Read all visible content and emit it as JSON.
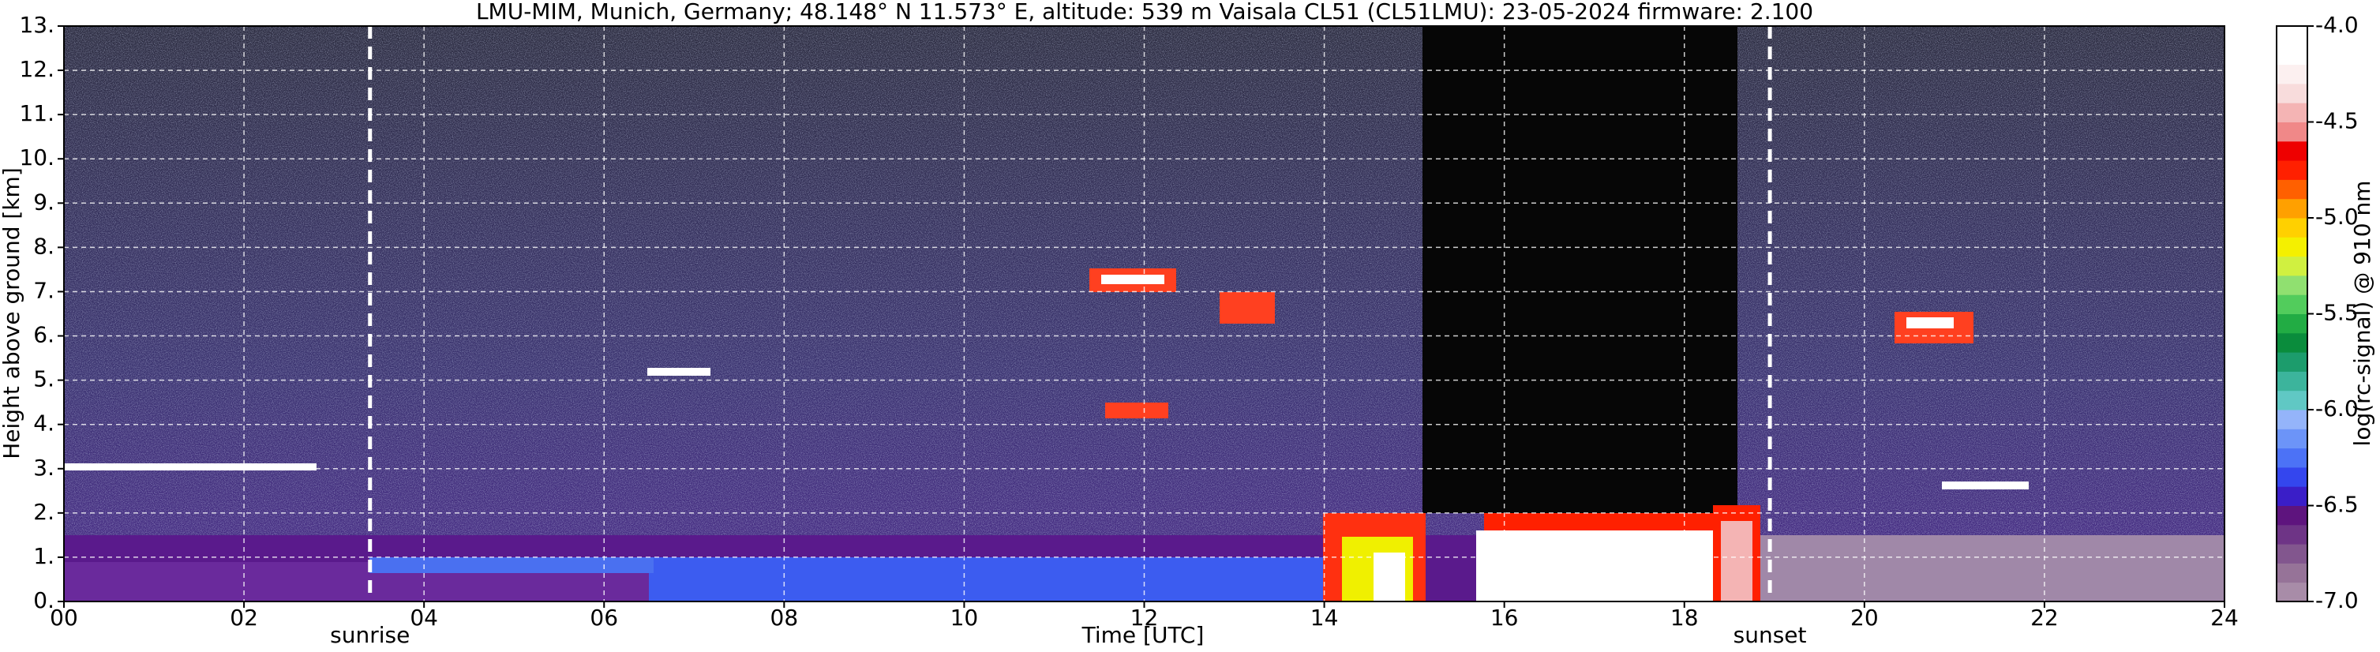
{
  "chart_data": {
    "type": "ceilometer",
    "title": "LMU-MIM, Munich, Germany; 48.148° N 11.573° E, altitude: 539 m    Vaisala CL51 (CL51LMU): 23-05-2024    firmware: 2.100",
    "x_label": "Time [UTC]",
    "y_label": "Height above ground [km]",
    "colorbar_label": "log(rc-signal) @ 910 nm",
    "xlim": [
      0,
      24
    ],
    "xticks": [
      {
        "value": 0,
        "label": "00"
      },
      {
        "value": 2,
        "label": "02"
      },
      {
        "value": 4,
        "label": "04"
      },
      {
        "value": 6,
        "label": "06"
      },
      {
        "value": 8,
        "label": "08"
      },
      {
        "value": 10,
        "label": "10"
      },
      {
        "value": 12,
        "label": "12"
      },
      {
        "value": 14,
        "label": "14"
      },
      {
        "value": 16,
        "label": "16"
      },
      {
        "value": 18,
        "label": "18"
      },
      {
        "value": 20,
        "label": "20"
      },
      {
        "value": 22,
        "label": "22"
      },
      {
        "value": 24,
        "label": "24"
      }
    ],
    "ylim": [
      0,
      13
    ],
    "yticks": [
      {
        "value": 0,
        "label": "0."
      },
      {
        "value": 1,
        "label": "1."
      },
      {
        "value": 2,
        "label": "2."
      },
      {
        "value": 3,
        "label": "3."
      },
      {
        "value": 4,
        "label": "4."
      },
      {
        "value": 5,
        "label": "5."
      },
      {
        "value": 6,
        "label": "6."
      },
      {
        "value": 7,
        "label": "7."
      },
      {
        "value": 8,
        "label": "8."
      },
      {
        "value": 9,
        "label": "9."
      },
      {
        "value": 10,
        "label": "10."
      },
      {
        "value": 11,
        "label": "11."
      },
      {
        "value": 12,
        "label": "12."
      },
      {
        "value": 13,
        "label": "13."
      }
    ],
    "grid": true,
    "annotations": [
      {
        "label": "sunrise",
        "x": 3.4
      },
      {
        "label": "sunset",
        "x": 18.95
      }
    ],
    "clim": [
      -7,
      -4
    ],
    "cticks": [
      {
        "value": -7,
        "label": "-7.0"
      },
      -6.5,
      {
        "value": -6,
        "label": "-6.0"
      },
      -5.5,
      {
        "value": -5,
        "label": "-5.0"
      },
      -4.5,
      {
        "value": -4,
        "label": "-4.0"
      }
    ],
    "colormap": [
      "#a88ca8",
      "#967398",
      "#82568e",
      "#6e3486",
      "#5e147e",
      "#3a1ec8",
      "#3446ee",
      "#4c72f6",
      "#6c94f8",
      "#94b4fa",
      "#60c8c4",
      "#3cb49c",
      "#1c9c6c",
      "#0a8c3c",
      "#22ac44",
      "#52cc5c",
      "#90e070",
      "#d0f040",
      "#f4f000",
      "#ffd000",
      "#ffa000",
      "#ff6000",
      "#ff2000",
      "#ee0000",
      "#f08888",
      "#f4b4b4",
      "#f8dcdc",
      "#fcf0f0",
      "#ffffff",
      "#ffffff"
    ]
  }
}
